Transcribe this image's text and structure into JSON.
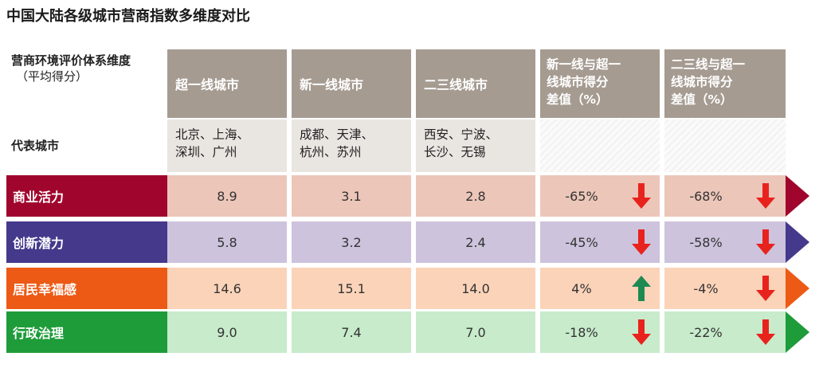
{
  "title": "中国大陆各级城市营商指数多维度对比",
  "row_header": {
    "dimension": "营商环境评价体系维度",
    "dimension_sub": "（平均得分）",
    "cities": "代表城市"
  },
  "columns": [
    {
      "label": "超一线城市",
      "cities": [
        "北京、上海、",
        "深圳、广州"
      ]
    },
    {
      "label": "新一线城市",
      "cities": [
        "成都、天津、",
        "杭州、苏州"
      ]
    },
    {
      "label": "二三线城市",
      "cities": [
        "西安、宁波、",
        "长沙、无锡"
      ]
    },
    {
      "label_lines": [
        "新一线与超一",
        "线城市得分",
        "差值（%）"
      ]
    },
    {
      "label_lines": [
        "二三线与超一",
        "线城市得分",
        "差值（%）"
      ]
    }
  ],
  "chart_data": {
    "type": "table",
    "title": "中国大陆各级城市营商指数多维度对比",
    "columns": [
      "超一线城市",
      "新一线城市",
      "二三线城市",
      "新一线与超一线城市得分差值（%）",
      "二三线与超一线城市得分差值（%）"
    ],
    "rows": [
      {
        "label": "商业活力",
        "values": [
          "8.9",
          "3.1",
          "2.8"
        ],
        "diffs": [
          "-65%",
          "-68%"
        ],
        "arrows": [
          "down",
          "down"
        ],
        "color": "#a0052d",
        "tint": "#ecc6b9"
      },
      {
        "label": "创新潜力",
        "values": [
          "5.8",
          "3.2",
          "2.4"
        ],
        "diffs": [
          "-45%",
          "-58%"
        ],
        "arrows": [
          "down",
          "down"
        ],
        "color": "#45398c",
        "tint": "#cdc3dd"
      },
      {
        "label": "居民幸福感",
        "values": [
          "14.6",
          "15.1",
          "14.0"
        ],
        "diffs": [
          "4%",
          "-4%"
        ],
        "arrows": [
          "up",
          "down"
        ],
        "color": "#ec5a16",
        "tint": "#fbd3b9"
      },
      {
        "label": "行政治理",
        "values": [
          "9.0",
          "7.4",
          "7.0"
        ],
        "diffs": [
          "-18%",
          "-22%"
        ],
        "arrows": [
          "down",
          "down"
        ],
        "color": "#1e9c3a",
        "tint": "#c7ebcb"
      }
    ],
    "arrow_colors": {
      "down": "#e8231d",
      "up": "#1e8a52"
    }
  }
}
